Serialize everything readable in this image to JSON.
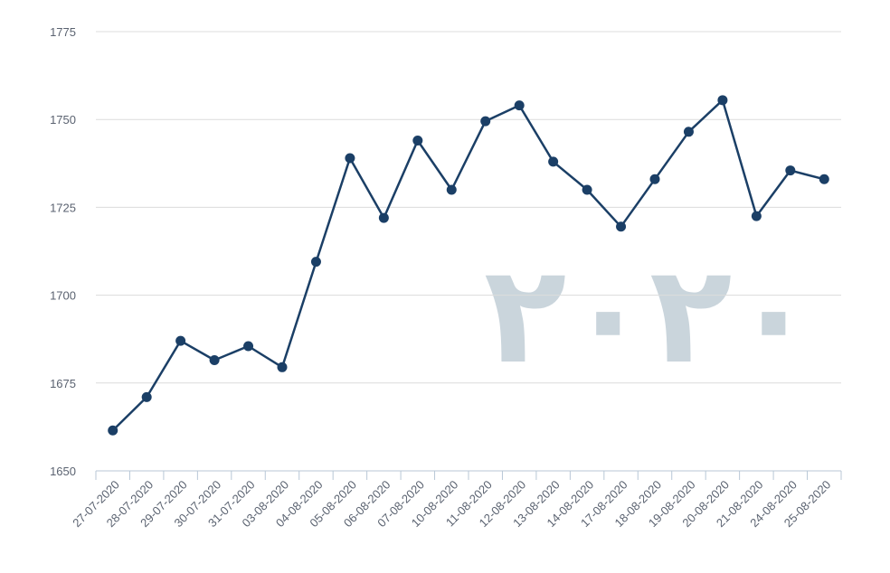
{
  "chart_data": {
    "type": "line",
    "title": "",
    "xlabel": "",
    "ylabel": "",
    "ylim": [
      1650,
      1775
    ],
    "yticks": [
      1650,
      1675,
      1700,
      1725,
      1750,
      1775
    ],
    "grid": true,
    "legend": "none",
    "categories": [
      "27-07-2020",
      "28-07-2020",
      "29-07-2020",
      "30-07-2020",
      "31-07-2020",
      "03-08-2020",
      "04-08-2020",
      "05-08-2020",
      "06-08-2020",
      "07-08-2020",
      "10-08-2020",
      "11-08-2020",
      "12-08-2020",
      "13-08-2020",
      "14-08-2020",
      "17-08-2020",
      "18-08-2020",
      "19-08-2020",
      "20-08-2020",
      "21-08-2020",
      "24-08-2020",
      "25-08-2020"
    ],
    "series": [
      {
        "values": [
          1661.5,
          1671,
          1687,
          1681.5,
          1685.5,
          1679.5,
          1709.5,
          1739,
          1722,
          1744,
          1730,
          1749.5,
          1754,
          1738,
          1730,
          1719.5,
          1733,
          1746.5,
          1755.5,
          1722.5,
          1735.5,
          1733
        ],
        "color": "#1b3f66"
      }
    ],
    "watermark": {
      "text": "٢٠٢٠",
      "color": "#b9c7d1"
    }
  }
}
